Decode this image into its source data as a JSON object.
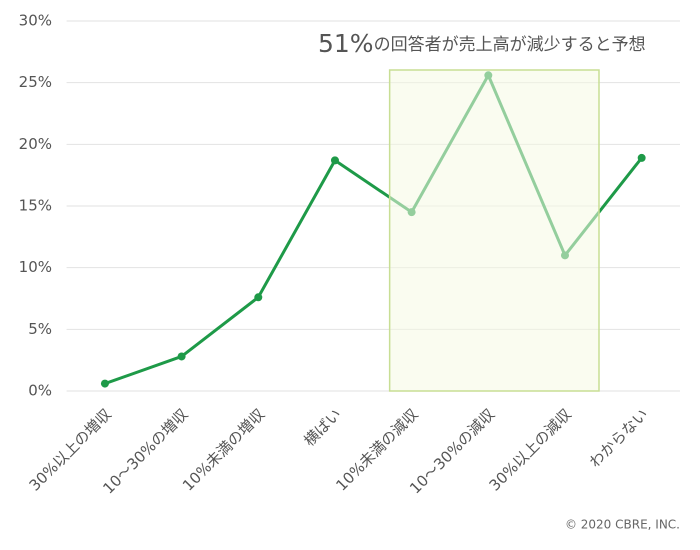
{
  "chart_data": {
    "type": "line",
    "categories": [
      "30%以上の増収",
      "10～30%の増収",
      "10%未満の増収",
      "横ばい",
      "10%未満の減収",
      "10～30%の減収",
      "30%以上の減収",
      "わからない"
    ],
    "values": [
      0.6,
      2.8,
      7.6,
      18.7,
      14.5,
      25.6,
      11.0,
      18.9
    ],
    "color": "#1e9a48",
    "ylim": [
      0,
      30
    ],
    "yticks": [
      {
        "value": 0,
        "label": "0%"
      },
      {
        "value": 5,
        "label": "5%"
      },
      {
        "value": 10,
        "label": "10%"
      },
      {
        "value": 15,
        "label": "15%"
      },
      {
        "value": 20,
        "label": "20%"
      },
      {
        "value": 25,
        "label": "25%"
      },
      {
        "value": 30,
        "label": "30%"
      }
    ],
    "grid": true,
    "annotation": {
      "emphasis": "51%",
      "text": "の回答者が売上高が減少すると予想"
    },
    "copyright": "© 2020 CBRE, INC."
  }
}
